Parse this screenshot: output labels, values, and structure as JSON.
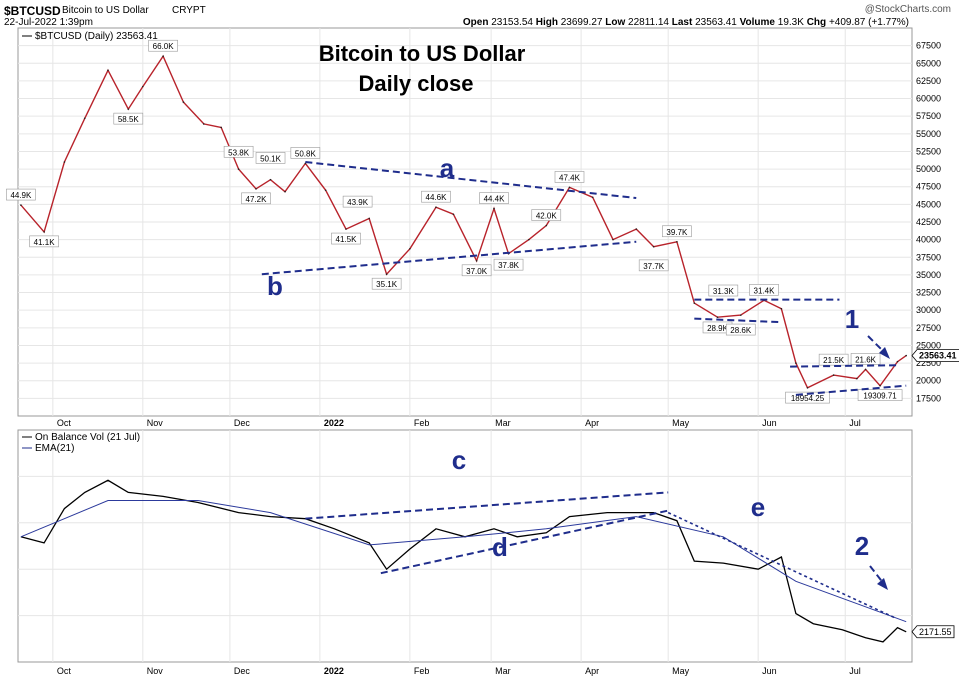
{
  "header": {
    "symbol": "$BTCUSD",
    "name": "Bitcoin to US Dollar",
    "exchange": "CRYPT",
    "datetime": "22-Jul-2022 1:39pm",
    "watermark": "@StockCharts.com",
    "quote": "Open 23153.54 High 23699.27 Low 22811.14 Last 23563.41 Volume 19.3K Chg +409.87 (+1.77%)",
    "quote_parts": [
      {
        "label": "Open",
        "value": "23153.54"
      },
      {
        "label": "High",
        "value": "23699.27"
      },
      {
        "label": "Low",
        "value": "22811.14"
      },
      {
        "label": "Last",
        "value": "23563.41"
      },
      {
        "label": "Volume",
        "value": "19.3K"
      },
      {
        "label": "Chg",
        "value": "+409.87 (+1.77%)"
      }
    ]
  },
  "chart_data": [
    {
      "type": "line",
      "title": "Bitcoin to US Dollar",
      "subtitle": "Daily close",
      "legend": "$BTCUSD (Daily) 23563.41",
      "legend_position": "top-left",
      "last_value_label": "23563.41",
      "grid": true,
      "color": "#b8232b",
      "ylim": [
        15000,
        70000
      ],
      "y_ticks": [
        17500,
        20000,
        22500,
        25000,
        27500,
        30000,
        32500,
        35000,
        37500,
        40000,
        42500,
        45000,
        47500,
        50000,
        52500,
        55000,
        57500,
        60000,
        62500,
        65000,
        67500
      ],
      "x_ticks": [
        "Oct",
        "Nov",
        "Dec",
        "2022",
        "Feb",
        "Mar",
        "Apr",
        "May",
        "Jun",
        "Jul"
      ],
      "series": [
        {
          "x": [
            "2021-09-20",
            "2021-09-28",
            "2021-10-05",
            "2021-10-12",
            "2021-10-20",
            "2021-10-27",
            "2021-11-01",
            "2021-11-08",
            "2021-11-15",
            "2021-11-22",
            "2021-11-28",
            "2021-12-04",
            "2021-12-10",
            "2021-12-15",
            "2021-12-20",
            "2021-12-27",
            "2022-01-03",
            "2022-01-10",
            "2022-01-18",
            "2022-01-24",
            "2022-02-01",
            "2022-02-10",
            "2022-02-16",
            "2022-02-24",
            "2022-03-02",
            "2022-03-07",
            "2022-03-14",
            "2022-03-20",
            "2022-03-28",
            "2022-04-05",
            "2022-04-12",
            "2022-04-20",
            "2022-04-26",
            "2022-05-04",
            "2022-05-10",
            "2022-05-18",
            "2022-05-26",
            "2022-06-03",
            "2022-06-09",
            "2022-06-14",
            "2022-06-18",
            "2022-06-27",
            "2022-07-05",
            "2022-07-08",
            "2022-07-13",
            "2022-07-19",
            "2022-07-22"
          ],
          "values": [
            44900,
            41100,
            51000,
            57200,
            64000,
            58500,
            61700,
            66000,
            59500,
            56400,
            55900,
            50000,
            47200,
            48500,
            46800,
            50800,
            47000,
            41500,
            43000,
            35100,
            38700,
            44600,
            43600,
            37000,
            44400,
            38000,
            40000,
            42000,
            47400,
            46000,
            40000,
            41500,
            39000,
            39700,
            31000,
            29000,
            29300,
            31400,
            30200,
            22500,
            19000,
            20800,
            20300,
            21600,
            19300,
            22700,
            23563
          ]
        }
      ],
      "annotations": [
        "66.0K",
        "58.5K",
        "53.8K",
        "50.1K",
        "47.2K",
        "50.8K",
        "43.9K",
        "41.5K",
        "35.1K",
        "44.6K",
        "37.0K",
        "44.4K",
        "42.0K",
        "37.8K",
        "47.4K",
        "39.7K",
        "37.7K",
        "31.3K",
        "31.4K",
        "28.9K",
        "28.6K",
        "21.5K",
        "21.6K",
        "18954.25",
        "19309.71",
        "44.9K",
        "41.1K"
      ],
      "callouts": [
        "a",
        "b",
        "1"
      ]
    },
    {
      "type": "line",
      "legend": [
        "On Balance Vol (21 Jul)",
        "EMA(21)"
      ],
      "legend_position": "top-left",
      "last_value_label": "2171.55",
      "grid": true,
      "x_ticks": [
        "Oct",
        "Nov",
        "Dec",
        "2022",
        "Feb",
        "Mar",
        "Apr",
        "May",
        "Jun",
        "Jul"
      ],
      "series": [
        {
          "name": "On Balance Vol",
          "x": [
            "2021-09-20",
            "2021-09-28",
            "2021-10-05",
            "2021-10-12",
            "2021-10-20",
            "2021-10-27",
            "2021-11-08",
            "2021-11-20",
            "2021-12-04",
            "2021-12-15",
            "2021-12-27",
            "2022-01-06",
            "2022-01-18",
            "2022-01-24",
            "2022-02-01",
            "2022-02-10",
            "2022-02-20",
            "2022-03-02",
            "2022-03-10",
            "2022-03-20",
            "2022-03-28",
            "2022-04-10",
            "2022-04-26",
            "2022-05-04",
            "2022-05-10",
            "2022-05-20",
            "2022-06-01",
            "2022-06-09",
            "2022-06-14",
            "2022-06-20",
            "2022-06-30",
            "2022-07-08",
            "2022-07-14",
            "2022-07-19",
            "2022-07-22"
          ],
          "values": [
            58,
            55,
            72,
            80,
            86,
            80,
            78,
            75,
            70,
            68,
            67,
            62,
            55,
            42,
            52,
            62,
            58,
            62,
            58,
            60,
            68,
            70,
            70,
            66,
            46,
            45,
            42,
            48,
            20,
            15,
            12,
            8,
            6,
            13,
            11
          ]
        },
        {
          "name": "EMA(21)",
          "x": [
            "2021-09-20",
            "2021-10-20",
            "2021-11-20",
            "2021-12-15",
            "2022-01-18",
            "2022-02-20",
            "2022-03-20",
            "2022-04-20",
            "2022-05-20",
            "2022-06-14",
            "2022-07-22"
          ],
          "values": [
            58,
            76,
            76,
            70,
            54,
            58,
            62,
            68,
            58,
            36,
            16
          ]
        }
      ],
      "callouts": [
        "c",
        "d",
        "e",
        "2"
      ]
    }
  ]
}
